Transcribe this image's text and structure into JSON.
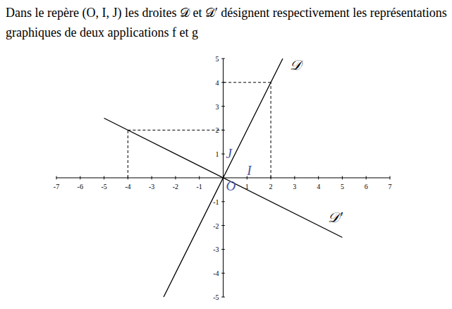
{
  "chart_data": {
    "type": "line",
    "title": "Dans le repère (O, I, J) les droites 𝒟 et 𝒟′ désignent respectivement les représentations graphiques de deux applications f et g",
    "series": [
      {
        "name": "𝒟",
        "color": "#000000",
        "x": [
          -2.5,
          2.5
        ],
        "values": [
          -5,
          5
        ]
      },
      {
        "name": "𝒟′",
        "color": "#000000",
        "x": [
          -5,
          5
        ],
        "values": [
          2.5,
          -2.5
        ]
      }
    ],
    "xlim": [
      -7,
      7
    ],
    "xticks": [
      -7,
      -6,
      -5,
      -4,
      -3,
      -2,
      -1,
      1,
      2,
      3,
      4,
      5,
      6,
      7
    ],
    "ylim": [
      -5,
      5
    ],
    "yticks": [
      -5,
      -4,
      -3,
      -2,
      -1,
      1,
      2,
      3,
      4,
      5
    ],
    "point_labels": [
      {
        "text": "O",
        "x": 0,
        "y": 0
      },
      {
        "text": "I",
        "x": 1,
        "y": 0
      },
      {
        "text": "J",
        "x": 0,
        "y": 1
      }
    ],
    "projections": [
      {
        "x": -4,
        "y": 2
      },
      {
        "x": 2,
        "y": 4
      }
    ]
  }
}
